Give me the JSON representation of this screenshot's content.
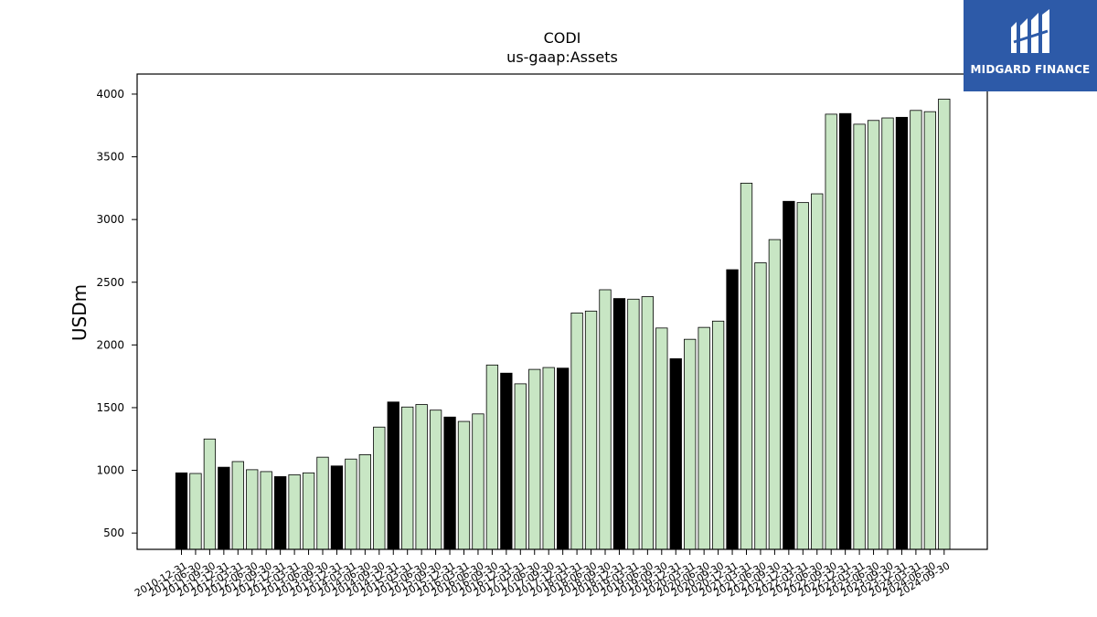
{
  "chart_data": {
    "type": "bar",
    "title": "CODI",
    "subtitle": "us-gaap:Assets",
    "ylabel": "USDm",
    "xlabel": "",
    "ylim": [
      370,
      4160
    ],
    "yticks": [
      500,
      1000,
      1500,
      2000,
      2500,
      3000,
      3500,
      4000
    ],
    "categories": [
      "2010-12-31",
      "2011-06-30",
      "2011-09-30",
      "2011-12-31",
      "2012-03-31",
      "2012-06-30",
      "2012-09-30",
      "2012-12-31",
      "2013-03-31",
      "2013-06-30",
      "2013-09-30",
      "2013-12-31",
      "2014-03-31",
      "2014-06-30",
      "2014-09-30",
      "2014-12-31",
      "2015-03-31",
      "2015-06-30",
      "2015-09-30",
      "2015-12-31",
      "2016-03-31",
      "2016-06-30",
      "2016-09-30",
      "2016-12-31",
      "2017-03-31",
      "2017-06-30",
      "2017-09-30",
      "2017-12-31",
      "2018-03-31",
      "2018-06-30",
      "2018-09-30",
      "2018-12-31",
      "2019-03-31",
      "2019-06-30",
      "2019-09-30",
      "2019-12-31",
      "2020-03-31",
      "2020-06-30",
      "2020-09-30",
      "2020-12-31",
      "2021-03-31",
      "2021-06-30",
      "2021-09-30",
      "2021-12-31",
      "2022-03-31",
      "2022-06-30",
      "2022-09-30",
      "2022-12-31",
      "2023-03-31",
      "2023-06-30",
      "2023-09-30",
      "2023-12-31",
      "2024-03-31",
      "2024-06-30",
      "2024-09-30"
    ],
    "values": [
      980,
      975,
      1250,
      1025,
      1070,
      1005,
      990,
      950,
      965,
      980,
      1105,
      1035,
      1090,
      1125,
      1345,
      1545,
      1505,
      1525,
      1480,
      1425,
      1390,
      1450,
      1840,
      1775,
      1690,
      1805,
      1820,
      1815,
      2255,
      2270,
      2440,
      2370,
      2365,
      2385,
      2135,
      1890,
      2045,
      2140,
      2190,
      2600,
      3290,
      2655,
      2840,
      3145,
      3135,
      3205,
      3840,
      3845,
      3760,
      3790,
      3810,
      3815,
      3870,
      3860,
      3960
    ],
    "highlight_indices": [
      0,
      3,
      7,
      11,
      15,
      19,
      23,
      27,
      31,
      35,
      39,
      43,
      47,
      51
    ],
    "colors": {
      "bar": "#c8e6c4",
      "highlight": "#000000",
      "edge": "#000000"
    },
    "grid": false,
    "legend": "none"
  },
  "logo": {
    "text": "MIDGARD FINANCE",
    "background": "#2d5aa8"
  }
}
